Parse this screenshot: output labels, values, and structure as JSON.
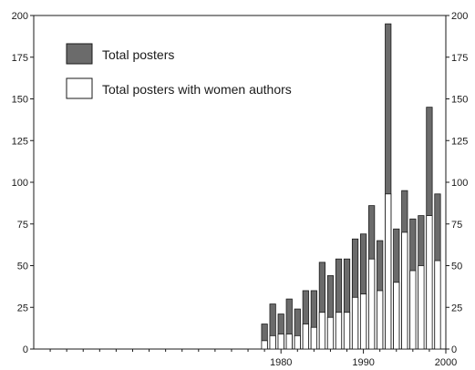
{
  "chart_data": {
    "type": "bar",
    "stacked": "overlay",
    "xlim": [
      1950,
      2000
    ],
    "ylim": [
      0,
      200
    ],
    "x_ticks": [
      1980,
      1990,
      2000
    ],
    "y_ticks": [
      0,
      25,
      50,
      75,
      100,
      125,
      150,
      175,
      200
    ],
    "grid": false,
    "legend_position": "top-left",
    "x": [
      1978,
      1979,
      1980,
      1981,
      1982,
      1983,
      1984,
      1985,
      1986,
      1987,
      1988,
      1989,
      1990,
      1991,
      1992,
      1993,
      1994,
      1995,
      1996,
      1997,
      1998,
      1999
    ],
    "series": [
      {
        "name": "Total posters",
        "color": "#6b6b6b",
        "values": [
          15,
          27,
          21,
          30,
          24,
          35,
          35,
          52,
          44,
          54,
          54,
          66,
          69,
          86,
          65,
          195,
          72,
          95,
          78,
          80,
          145,
          93
        ]
      },
      {
        "name": "Total posters with women authors",
        "color": "#ffffff",
        "values": [
          5,
          8,
          9,
          9,
          8,
          15,
          13,
          22,
          19,
          22,
          22,
          31,
          33,
          54,
          35,
          93,
          40,
          70,
          47,
          50,
          80,
          53
        ]
      }
    ]
  }
}
